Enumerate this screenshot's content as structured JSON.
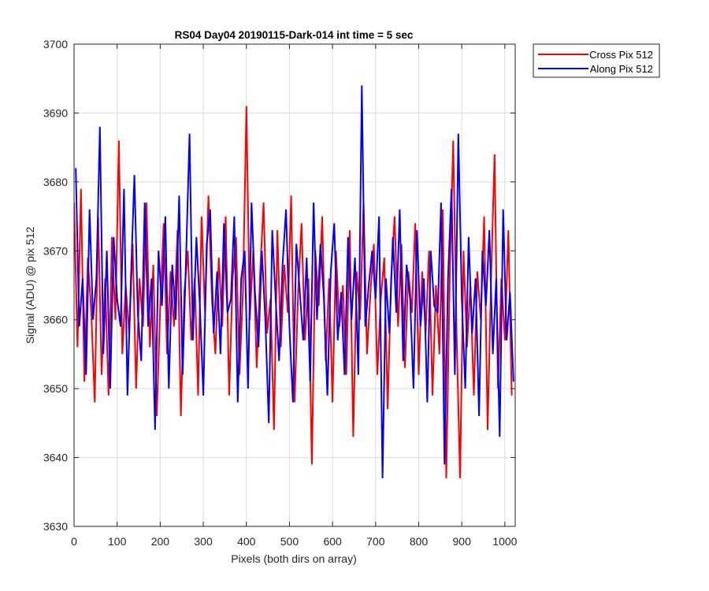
{
  "chart_data": {
    "type": "line",
    "title": "RS04 Day04 20190115-Dark-014 int time = 5 sec",
    "xlabel": "Pixels (both dirs on array)",
    "ylabel": "Signal (ADU) @ pix 512",
    "xlim": [
      0,
      1024
    ],
    "ylim": [
      3630,
      3700
    ],
    "xticks": [
      0,
      100,
      200,
      300,
      400,
      500,
      600,
      700,
      800,
      900,
      1000
    ],
    "yticks": [
      3630,
      3640,
      3650,
      3660,
      3670,
      3680,
      3690,
      3700
    ],
    "grid": true,
    "legend_position": "outside-top-right",
    "series": [
      {
        "name": "Cross Pix 512",
        "color": "#ff0000",
        "sampling": "every 8 pixels (approximate trace)",
        "x": [
          0,
          8,
          16,
          24,
          32,
          40,
          48,
          56,
          64,
          72,
          80,
          88,
          96,
          104,
          112,
          120,
          128,
          136,
          144,
          152,
          160,
          168,
          176,
          184,
          192,
          200,
          208,
          216,
          224,
          232,
          240,
          248,
          256,
          264,
          272,
          280,
          288,
          296,
          304,
          312,
          320,
          328,
          336,
          344,
          352,
          360,
          368,
          376,
          384,
          392,
          400,
          408,
          416,
          424,
          432,
          440,
          448,
          456,
          464,
          472,
          480,
          488,
          496,
          504,
          512,
          520,
          528,
          536,
          544,
          552,
          560,
          568,
          576,
          584,
          592,
          600,
          608,
          616,
          624,
          632,
          640,
          648,
          656,
          664,
          672,
          680,
          688,
          696,
          704,
          712,
          720,
          728,
          736,
          744,
          752,
          760,
          768,
          776,
          784,
          792,
          800,
          808,
          816,
          824,
          832,
          840,
          848,
          856,
          864,
          872,
          880,
          888,
          896,
          904,
          912,
          920,
          928,
          936,
          944,
          952,
          960,
          968,
          976,
          984,
          992,
          1000,
          1008,
          1016
        ],
        "y": [
          3677,
          3656,
          3679,
          3651,
          3669,
          3661,
          3648,
          3675,
          3652,
          3666,
          3649,
          3672,
          3660,
          3686,
          3655,
          3665,
          3658,
          3671,
          3650,
          3666,
          3659,
          3677,
          3656,
          3668,
          3646,
          3662,
          3674,
          3655,
          3667,
          3659,
          3673,
          3646,
          3664,
          3670,
          3657,
          3666,
          3649,
          3675,
          3661,
          3678,
          3663,
          3655,
          3669,
          3659,
          3675,
          3649,
          3666,
          3672,
          3652,
          3664,
          3691,
          3660,
          3670,
          3653,
          3667,
          3677,
          3658,
          3663,
          3644,
          3673,
          3656,
          3668,
          3661,
          3678,
          3648,
          3664,
          3674,
          3657,
          3666,
          3639,
          3670,
          3662,
          3675,
          3654,
          3666,
          3648,
          3670,
          3659,
          3665,
          3652,
          3673,
          3643,
          3667,
          3660,
          3677,
          3655,
          3664,
          3671,
          3652,
          3663,
          3669,
          3647,
          3666,
          3675,
          3659,
          3671,
          3653,
          3667,
          3661,
          3674,
          3652,
          3667,
          3658,
          3670,
          3649,
          3665,
          3655,
          3676,
          3637,
          3666,
          3686,
          3658,
          3637,
          3670,
          3656,
          3665,
          3649,
          3667,
          3660,
          3675,
          3644,
          3666,
          3684,
          3650,
          3666,
          3657,
          3673,
          3649
        ]
      },
      {
        "name": "Along Pix 512",
        "color": "#0000ff",
        "sampling": "every 8 pixels (approximate trace)",
        "x": [
          4,
          12,
          20,
          28,
          36,
          44,
          52,
          60,
          68,
          76,
          84,
          92,
          100,
          108,
          116,
          124,
          132,
          140,
          148,
          156,
          164,
          172,
          180,
          188,
          196,
          204,
          212,
          220,
          228,
          236,
          244,
          252,
          260,
          268,
          276,
          284,
          292,
          300,
          308,
          316,
          324,
          332,
          340,
          348,
          356,
          364,
          372,
          380,
          388,
          396,
          404,
          412,
          420,
          428,
          436,
          444,
          452,
          460,
          468,
          476,
          484,
          492,
          500,
          508,
          516,
          524,
          532,
          540,
          548,
          556,
          564,
          572,
          580,
          588,
          596,
          604,
          612,
          620,
          628,
          636,
          644,
          652,
          660,
          668,
          676,
          684,
          692,
          700,
          708,
          716,
          724,
          732,
          740,
          748,
          756,
          764,
          772,
          780,
          788,
          796,
          804,
          812,
          820,
          828,
          836,
          844,
          852,
          860,
          868,
          876,
          884,
          892,
          900,
          908,
          916,
          924,
          932,
          940,
          948,
          956,
          964,
          972,
          980,
          988,
          996,
          1004,
          1012,
          1020
        ],
        "y": [
          3682,
          3659,
          3666,
          3652,
          3676,
          3660,
          3666,
          3688,
          3655,
          3670,
          3650,
          3672,
          3663,
          3659,
          3679,
          3649,
          3666,
          3681,
          3661,
          3654,
          3677,
          3659,
          3666,
          3644,
          3670,
          3662,
          3675,
          3650,
          3668,
          3660,
          3678,
          3652,
          3669,
          3687,
          3657,
          3672,
          3662,
          3649,
          3671,
          3676,
          3658,
          3667,
          3655,
          3674,
          3661,
          3663,
          3675,
          3648,
          3666,
          3670,
          3650,
          3677,
          3664,
          3656,
          3670,
          3660,
          3645,
          3673,
          3663,
          3654,
          3668,
          3676,
          3659,
          3648,
          3671,
          3664,
          3657,
          3669,
          3651,
          3677,
          3660,
          3671,
          3663,
          3649,
          3667,
          3674,
          3657,
          3664,
          3652,
          3672,
          3660,
          3669,
          3652,
          3694,
          3659,
          3665,
          3670,
          3663,
          3675,
          3637,
          3666,
          3658,
          3672,
          3661,
          3676,
          3654,
          3668,
          3663,
          3650,
          3673,
          3659,
          3666,
          3648,
          3670,
          3662,
          3661,
          3677,
          3639,
          3666,
          3679,
          3652,
          3687,
          3663,
          3650,
          3672,
          3658,
          3666,
          3646,
          3670,
          3662,
          3673,
          3655,
          3666,
          3643,
          3676,
          3657,
          3664,
          3651
        ]
      }
    ]
  }
}
